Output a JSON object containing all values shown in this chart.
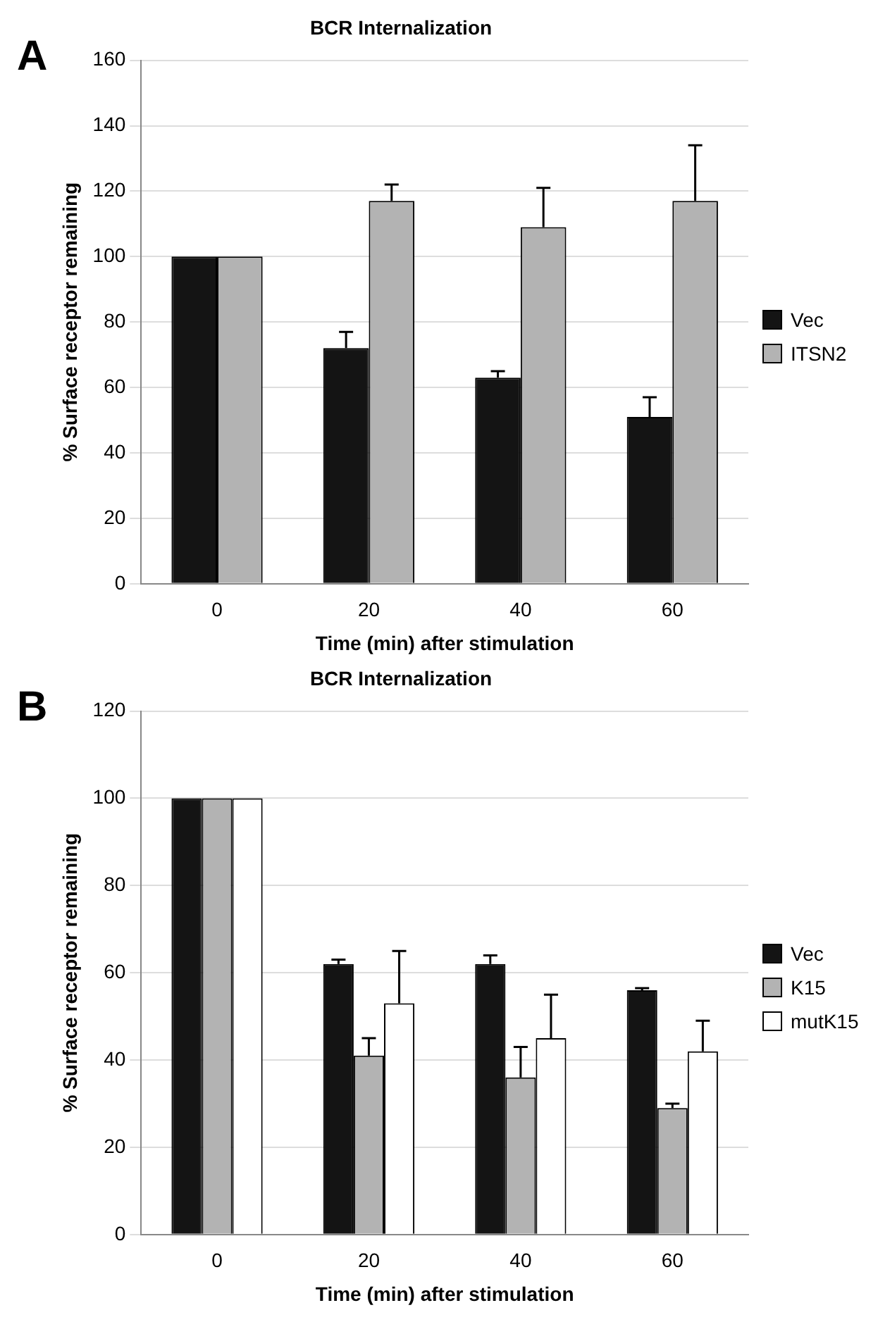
{
  "chart_data": [
    {
      "type": "bar",
      "title": "BCR Internalization",
      "annotations": [
        "A"
      ],
      "xlabel": "Time (min) after stimulation",
      "ylabel": "% Surface receptor remaining",
      "categories": [
        "0",
        "20",
        "40",
        "60"
      ],
      "series": [
        {
          "name": "Vec",
          "color": "#141414",
          "values": [
            100,
            72,
            63,
            51
          ],
          "errors": [
            null,
            [
              72,
              77
            ],
            [
              63,
              65
            ],
            [
              51,
              57
            ]
          ]
        },
        {
          "name": "ITSN2",
          "color": "#b3b3b3",
          "values": [
            100,
            117,
            109,
            117
          ],
          "errors": [
            null,
            [
              117,
              122
            ],
            [
              109,
              121
            ],
            [
              117,
              134
            ]
          ]
        }
      ],
      "ylim": [
        0,
        160
      ],
      "yticks": [
        0,
        20,
        40,
        60,
        80,
        100,
        120,
        140,
        160
      ],
      "grid": "y",
      "legend": "right"
    },
    {
      "type": "bar",
      "title": "BCR Internalization",
      "annotations": [
        "B"
      ],
      "xlabel": "Time (min) after stimulation",
      "ylabel": "% Surface receptor remaining",
      "categories": [
        "0",
        "20",
        "40",
        "60"
      ],
      "series": [
        {
          "name": "Vec",
          "color": "#141414",
          "values": [
            100,
            62,
            62,
            56
          ],
          "errors": [
            null,
            [
              62,
              63
            ],
            [
              62,
              64
            ],
            [
              56,
              56.5
            ]
          ]
        },
        {
          "name": "K15",
          "color": "#b3b3b3",
          "values": [
            100,
            41,
            36,
            29
          ],
          "errors": [
            null,
            [
              41,
              45
            ],
            [
              36,
              43
            ],
            [
              29,
              30
            ]
          ]
        },
        {
          "name": "mutK15",
          "color": "#ffffff",
          "values": [
            100,
            53,
            45,
            42
          ],
          "errors": [
            null,
            [
              53,
              65
            ],
            [
              45,
              55
            ],
            [
              42,
              49
            ]
          ]
        }
      ],
      "ylim": [
        0,
        120
      ],
      "yticks": [
        0,
        20,
        40,
        60,
        80,
        100,
        120
      ],
      "grid": "y",
      "legend": "right"
    }
  ]
}
